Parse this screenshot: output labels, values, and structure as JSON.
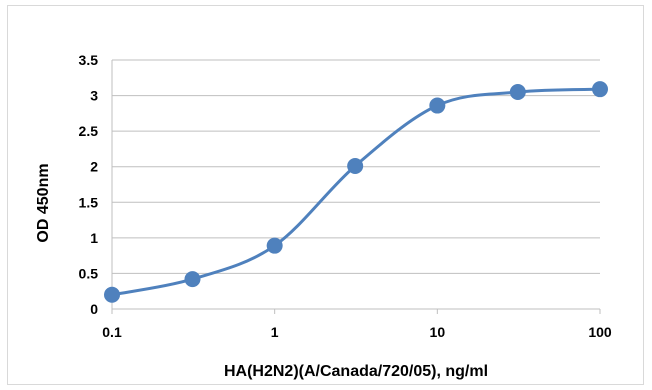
{
  "chart_data": {
    "type": "scatter",
    "title": "",
    "xlabel": "HA(H2N2)(A/Canada/720/05), ng/ml",
    "ylabel": "OD 450nm",
    "x_scale": "log",
    "xlim": [
      0.1,
      100
    ],
    "ylim": [
      0,
      3.5
    ],
    "x_ticks": [
      0.1,
      1,
      10,
      100
    ],
    "x_tick_labels": [
      "0.1",
      "1",
      "10",
      "100"
    ],
    "y_ticks": [
      0,
      0.5,
      1,
      1.5,
      2,
      2.5,
      3,
      3.5
    ],
    "y_tick_labels": [
      "0",
      "0.5",
      "1",
      "1.5",
      "2",
      "2.5",
      "3",
      "3.5"
    ],
    "grid": "horizontal",
    "legend": "none",
    "series": [
      {
        "x": [
          0.1,
          0.3125,
          1,
          3.125,
          10,
          31.25,
          100
        ],
        "y": [
          0.2,
          0.42,
          0.89,
          2.01,
          2.86,
          3.05,
          3.09
        ],
        "color": "#4f81bd",
        "smooth_line": true
      }
    ]
  }
}
